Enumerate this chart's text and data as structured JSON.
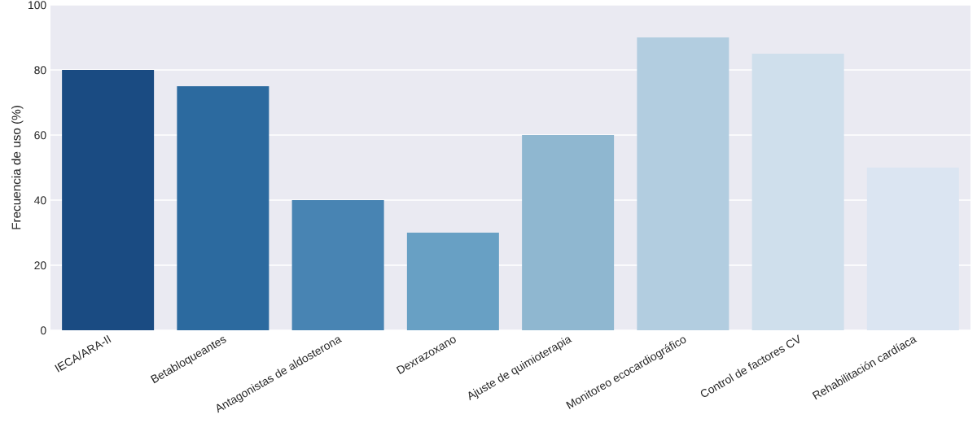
{
  "chart_data": {
    "type": "bar",
    "ylabel": "Frecuencia de uso (%)",
    "categories": [
      "IECA/ARA-II",
      "Betabloqueantes",
      "Antagonistas de aldosterona",
      "Dexrazoxano",
      "Ajuste de quimioterapia",
      "Monitoreo ecocardiográfico",
      "Control de factores CV",
      "Rehabilitación cardíaca"
    ],
    "values": [
      80,
      75,
      40,
      30,
      60,
      90,
      85,
      50
    ],
    "colors": [
      "#1a4b82",
      "#2c6a9f",
      "#4884b3",
      "#68a0c4",
      "#8fb7d0",
      "#b2cde0",
      "#cfdfec",
      "#dbe5f2"
    ],
    "ylim": [
      0,
      100
    ],
    "yticks": [
      0,
      20,
      40,
      60,
      80,
      100
    ],
    "grid": "y"
  }
}
